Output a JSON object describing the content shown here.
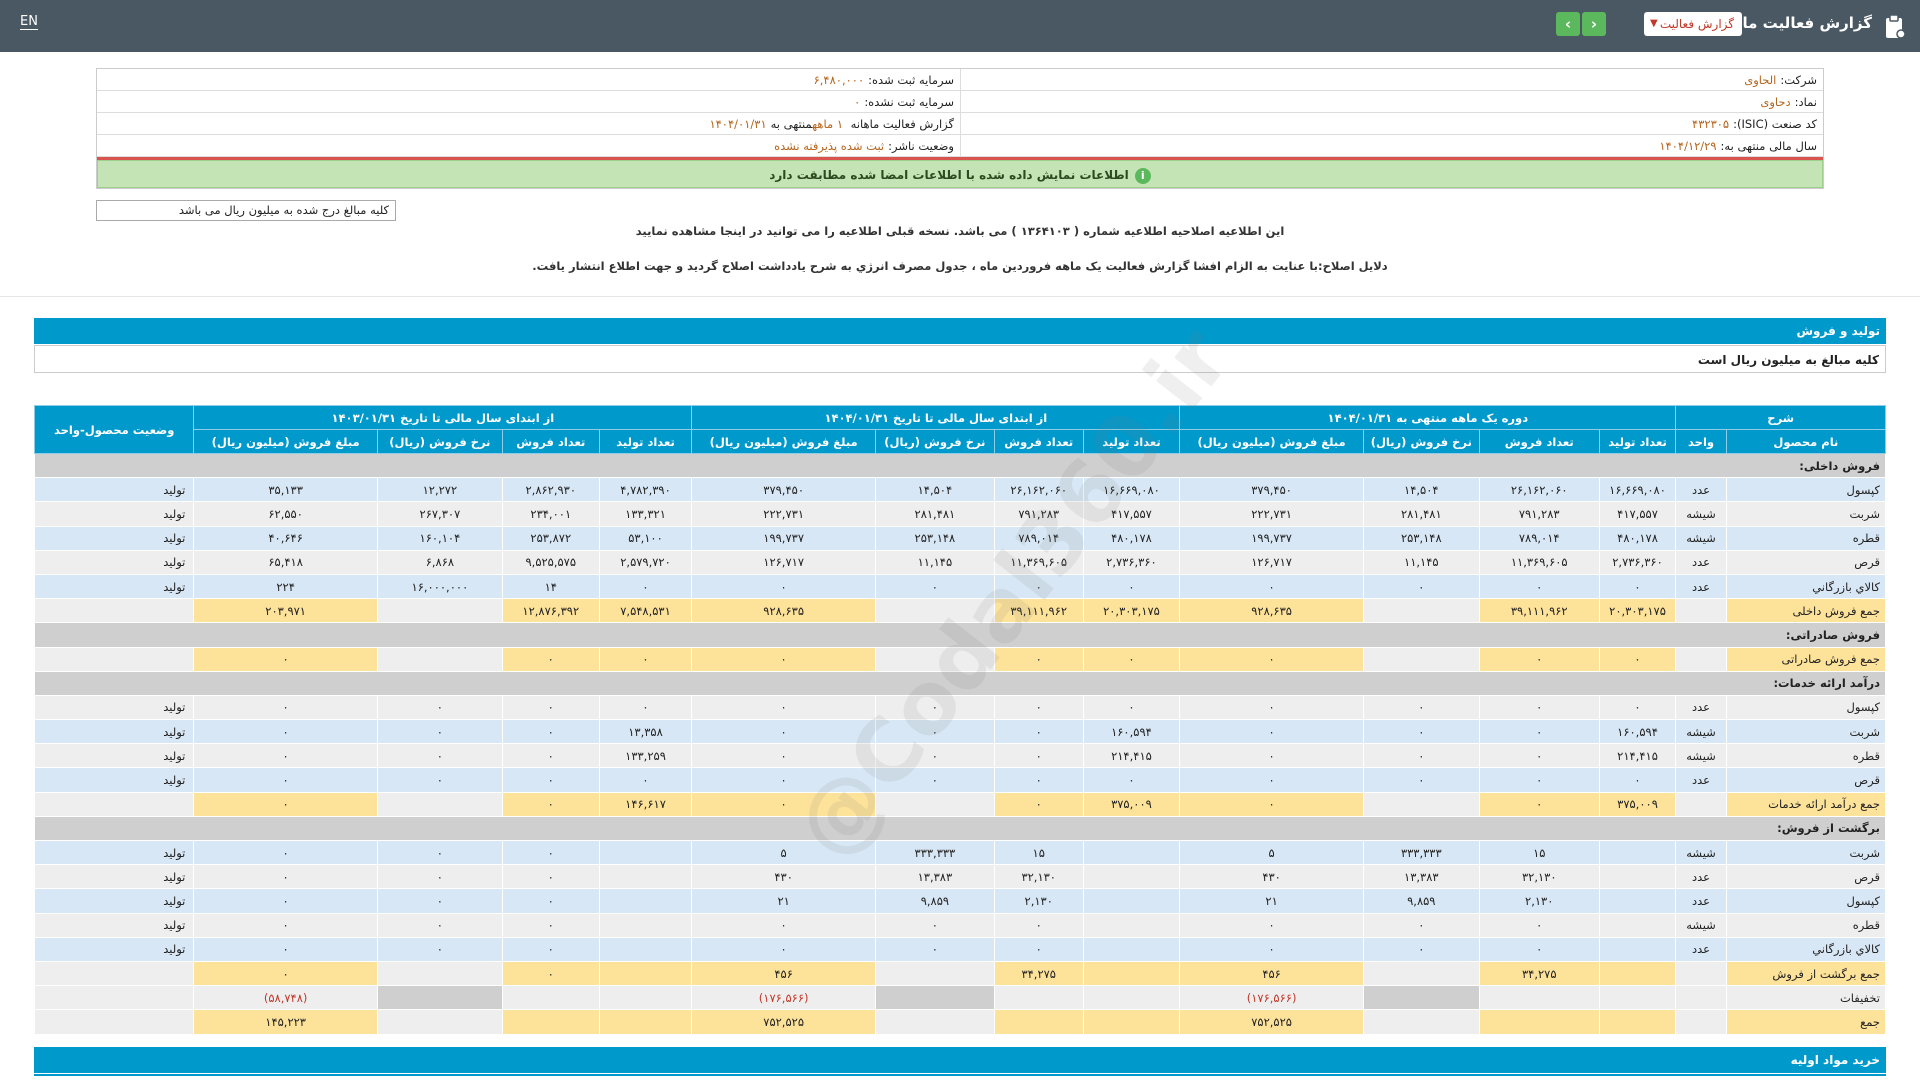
{
  "header": {
    "title": "گزارش فعالیت ماهانه",
    "report_type": "گزارش فعالیت",
    "lang": "EN",
    "next_glyph": "›",
    "prev_glyph": "‹"
  },
  "info": {
    "company_label": "شرکت:",
    "company": "الحاوی",
    "capital_reg_label": "سرمایه ثبت شده:",
    "capital_reg": "۶,۴۸۰,۰۰۰",
    "symbol_label": "نماد:",
    "symbol": "دحاوی",
    "capital_unreg_label": "سرمایه ثبت نشده:",
    "capital_unreg": "۰",
    "isic_label": "کد صنعت (ISIC):",
    "isic": "۴۳۲۳۰۵",
    "report_label": "گزارش فعالیت ماهانه",
    "report_months": "۱ ماهه",
    "report_end_text": "منتهی به",
    "report_end": "۱۴۰۴/۰۱/۳۱",
    "fy_label": "سال مالی منتهی به:",
    "fy": "۱۴۰۴/۱۲/۲۹",
    "publisher_label": "وضعیت ناشر:",
    "publisher": "ثبت شده پذیرفته نشده",
    "match_msg": "اطلاعات نمایش داده شده با اطلاعات امضا شده مطابقت دارد"
  },
  "notes": {
    "amount_note": "کلیه مبالغ درج شده به میلیون ریال می باشد",
    "correction_notice": "این اطلاعیه اصلاحیه اطلاعیه شماره ( ۱۳۶۴۱۰۳ ) می باشد. نسخه قبلی اطلاعیه را می توانید در اینجا مشاهده نمایید",
    "correction_reason": "دلایل اصلاح:با عنایت به الزام افشا گزارش فعالیت یک ماهه فروردین ماه ، جدول مصرف انرژي به شرح يادداشت اصلاح گرديد و جهت اطلاع انتشار يافت."
  },
  "section": {
    "title": "تولید و فروش",
    "subtitle": "کلیه مبالغ به میلیون ریال است",
    "next_title": "خرید مواد اولیه"
  },
  "table": {
    "group_headers": [
      "شرح",
      "دوره یک ماهه منتهی به ۱۴۰۴/۰۱/۳۱",
      "از ابتدای سال مالی تا تاریخ ۱۴۰۴/۰۱/۳۱",
      "از ابتدای سال مالی تا تاریخ ۱۴۰۳/۰۱/۳۱",
      "وضعیت محصول-واحد"
    ],
    "sub_headers": [
      "نام محصول",
      "واحد",
      "تعداد تولید",
      "تعداد فروش",
      "نرخ فروش (ریال)",
      "مبلغ فروش (میلیون ریال)",
      "تعداد تولید",
      "تعداد فروش",
      "نرخ فروش (ریال)",
      "مبلغ فروش (میلیون ریال)",
      "تعداد تولید",
      "تعداد فروش",
      "نرخ فروش (ریال)",
      "مبلغ فروش (میلیون ریال)"
    ],
    "rows": [
      {
        "kind": "sec",
        "cells": [
          "فروش داخلی:"
        ]
      },
      {
        "kind": "blue",
        "cells": [
          "کپسول",
          "عدد",
          "۱۶,۶۶۹,۰۸۰",
          "۲۶,۱۶۲,۰۶۰",
          "۱۴,۵۰۴",
          "۳۷۹,۴۵۰",
          "۱۶,۶۶۹,۰۸۰",
          "۲۶,۱۶۲,۰۶۰",
          "۱۴,۵۰۴",
          "۳۷۹,۴۵۰",
          "۴,۷۸۲,۳۹۰",
          "۲,۸۶۲,۹۳۰",
          "۱۲,۲۷۲",
          "۳۵,۱۳۳",
          "تولید"
        ]
      },
      {
        "kind": "grey",
        "cells": [
          "شربت",
          "شیشه",
          "۴۱۷,۵۵۷",
          "۷۹۱,۲۸۳",
          "۲۸۱,۴۸۱",
          "۲۲۲,۷۳۱",
          "۴۱۷,۵۵۷",
          "۷۹۱,۲۸۳",
          "۲۸۱,۴۸۱",
          "۲۲۲,۷۳۱",
          "۱۳۳,۳۲۱",
          "۲۳۴,۰۰۱",
          "۲۶۷,۳۰۷",
          "۶۲,۵۵۰",
          "تولید"
        ]
      },
      {
        "kind": "blue",
        "cells": [
          "قطره",
          "شیشه",
          "۴۸۰,۱۷۸",
          "۷۸۹,۰۱۴",
          "۲۵۳,۱۴۸",
          "۱۹۹,۷۳۷",
          "۴۸۰,۱۷۸",
          "۷۸۹,۰۱۴",
          "۲۵۳,۱۴۸",
          "۱۹۹,۷۳۷",
          "۵۳,۱۰۰",
          "۲۵۳,۸۷۲",
          "۱۶۰,۱۰۴",
          "۴۰,۶۴۶",
          "تولید"
        ]
      },
      {
        "kind": "grey",
        "cells": [
          "قرص",
          "عدد",
          "۲,۷۳۶,۳۶۰",
          "۱۱,۳۶۹,۶۰۵",
          "۱۱,۱۴۵",
          "۱۲۶,۷۱۷",
          "۲,۷۳۶,۳۶۰",
          "۱۱,۳۶۹,۶۰۵",
          "۱۱,۱۴۵",
          "۱۲۶,۷۱۷",
          "۲,۵۷۹,۷۲۰",
          "۹,۵۲۵,۵۷۵",
          "۶,۸۶۸",
          "۶۵,۴۱۸",
          "تولید"
        ]
      },
      {
        "kind": "blue",
        "cells": [
          "کالاي بازرگاني",
          "عدد",
          "۰",
          "۰",
          "۰",
          "۰",
          "۰",
          "۰",
          "۰",
          "۰",
          "۰",
          "۱۴",
          "۱۶,۰۰۰,۰۰۰",
          "۲۲۴",
          "تولید"
        ]
      },
      {
        "kind": "sum",
        "cells": [
          "جمع فروش داخلی",
          "",
          "۲۰,۳۰۳,۱۷۵",
          "۳۹,۱۱۱,۹۶۲",
          "",
          "۹۲۸,۶۳۵",
          "۲۰,۳۰۳,۱۷۵",
          "۳۹,۱۱۱,۹۶۲",
          "",
          "۹۲۸,۶۳۵",
          "۷,۵۴۸,۵۳۱",
          "۱۲,۸۷۶,۳۹۲",
          "",
          "۲۰۳,۹۷۱",
          ""
        ]
      },
      {
        "kind": "sec",
        "cells": [
          "فروش صادراتی:"
        ]
      },
      {
        "kind": "sum",
        "cells": [
          "جمع فروش صادراتی",
          "",
          "۰",
          "۰",
          "",
          "۰",
          "۰",
          "۰",
          "",
          "۰",
          "۰",
          "۰",
          "",
          "۰",
          ""
        ]
      },
      {
        "kind": "sec",
        "cells": [
          "درآمد ارائه خدمات:"
        ]
      },
      {
        "kind": "grey",
        "cells": [
          "کپسول",
          "عدد",
          "۰",
          "۰",
          "۰",
          "۰",
          "۰",
          "۰",
          "۰",
          "۰",
          "۰",
          "۰",
          "۰",
          "۰",
          "تولید"
        ]
      },
      {
        "kind": "blue",
        "cells": [
          "شربت",
          "شیشه",
          "۱۶۰,۵۹۴",
          "۰",
          "۰",
          "۰",
          "۱۶۰,۵۹۴",
          "۰",
          "۰",
          "۰",
          "۱۳,۳۵۸",
          "۰",
          "۰",
          "۰",
          "تولید"
        ]
      },
      {
        "kind": "grey",
        "cells": [
          "قطره",
          "شیشه",
          "۲۱۴,۴۱۵",
          "۰",
          "۰",
          "۰",
          "۲۱۴,۴۱۵",
          "۰",
          "۰",
          "۰",
          "۱۳۳,۲۵۹",
          "۰",
          "۰",
          "۰",
          "تولید"
        ]
      },
      {
        "kind": "blue",
        "cells": [
          "قرص",
          "عدد",
          "۰",
          "۰",
          "۰",
          "۰",
          "۰",
          "۰",
          "۰",
          "۰",
          "۰",
          "۰",
          "۰",
          "۰",
          "تولید"
        ]
      },
      {
        "kind": "sum",
        "cells": [
          "جمع درآمد ارائه خدمات",
          "",
          "۳۷۵,۰۰۹",
          "۰",
          "",
          "۰",
          "۳۷۵,۰۰۹",
          "۰",
          "",
          "۰",
          "۱۴۶,۶۱۷",
          "۰",
          "",
          "۰",
          ""
        ]
      },
      {
        "kind": "sec",
        "cells": [
          "برگشت از فروش:"
        ]
      },
      {
        "kind": "blue",
        "cells": [
          "شربت",
          "شیشه",
          "",
          "۱۵",
          "۳۳۳,۳۳۳",
          "۵",
          "",
          "۱۵",
          "۳۳۳,۳۳۳",
          "۵",
          "",
          "۰",
          "۰",
          "۰",
          "تولید"
        ]
      },
      {
        "kind": "grey",
        "cells": [
          "قرص",
          "عدد",
          "",
          "۳۲,۱۳۰",
          "۱۳,۳۸۳",
          "۴۳۰",
          "",
          "۳۲,۱۳۰",
          "۱۳,۳۸۳",
          "۴۳۰",
          "",
          "۰",
          "۰",
          "۰",
          "تولید"
        ]
      },
      {
        "kind": "blue",
        "cells": [
          "کپسول",
          "عدد",
          "",
          "۲,۱۳۰",
          "۹,۸۵۹",
          "۲۱",
          "",
          "۲,۱۳۰",
          "۹,۸۵۹",
          "۲۱",
          "",
          "۰",
          "۰",
          "۰",
          "تولید"
        ]
      },
      {
        "kind": "grey",
        "cells": [
          "قطره",
          "شیشه",
          "",
          "۰",
          "۰",
          "۰",
          "",
          "۰",
          "۰",
          "۰",
          "",
          "۰",
          "۰",
          "۰",
          "تولید"
        ]
      },
      {
        "kind": "blue",
        "cells": [
          "کالاي بازرگاني",
          "عدد",
          "",
          "۰",
          "۰",
          "۰",
          "",
          "۰",
          "۰",
          "۰",
          "",
          "۰",
          "۰",
          "۰",
          "تولید"
        ]
      },
      {
        "kind": "sum",
        "cells": [
          "جمع برگشت از فروش",
          "",
          "",
          "۳۴,۲۷۵",
          "",
          "۴۵۶",
          "",
          "۳۴,۲۷۵",
          "",
          "۴۵۶",
          "",
          "۰",
          "",
          "۰",
          ""
        ]
      },
      {
        "kind": "disc",
        "cells": [
          "تخفیفات",
          "",
          "",
          "",
          "",
          "(۱۷۶,۵۶۶)",
          "",
          "",
          "",
          "(۱۷۶,۵۶۶)",
          "",
          "",
          "",
          "(۵۸,۷۴۸)",
          ""
        ]
      },
      {
        "kind": "sum",
        "cells": [
          "جمع",
          "",
          "",
          "",
          "",
          "۷۵۲,۵۲۵",
          "",
          "",
          "",
          "۷۵۲,۵۲۵",
          "",
          "",
          "",
          "۱۴۵,۲۲۳",
          ""
        ]
      }
    ]
  },
  "watermark": "@Codal360.ir",
  "colors": {
    "header_bg": "#4a5863",
    "table_header": "#0099cc",
    "row_blue": "#d8e7f5",
    "row_grey": "#eeeeee",
    "row_sum": "#fde29a",
    "negative": "#c0392b"
  }
}
